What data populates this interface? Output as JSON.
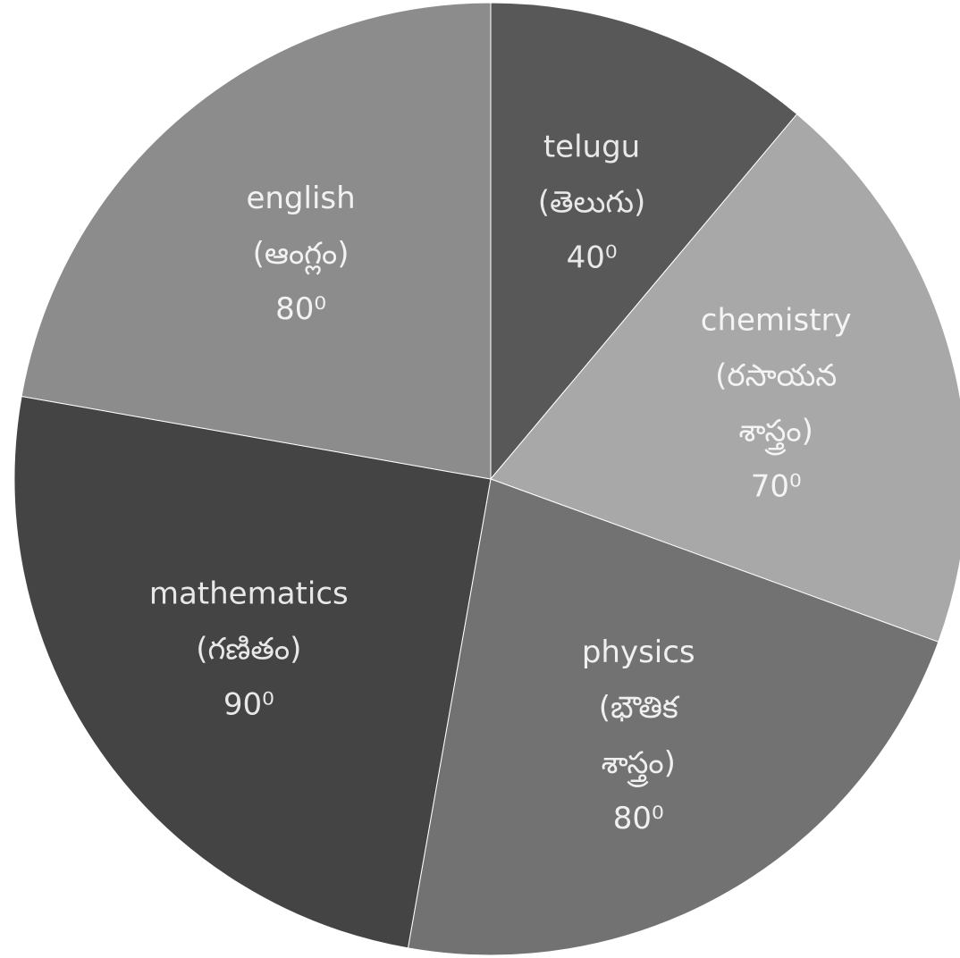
{
  "chart_data": {
    "type": "pie",
    "unit": "degrees",
    "slices": [
      {
        "label_lines": [
          "telugu",
          "(తెలుగు)"
        ],
        "value": 40,
        "value_text": "40⁰",
        "color": "#585858",
        "text_color": "#e8e8e8"
      },
      {
        "label_lines": [
          "chemistry",
          "(రసాయన",
          "శాస్త్రం)"
        ],
        "value": 70,
        "value_text": "70⁰",
        "color": "#a8a8a8",
        "text_color": "#f4f4f4"
      },
      {
        "label_lines": [
          "physics",
          "(భౌతిక",
          "శాస్త్రం)"
        ],
        "value": 80,
        "value_text": "80⁰",
        "color": "#727272",
        "text_color": "#f0f0f0"
      },
      {
        "label_lines": [
          "mathematics",
          "(గణితం)"
        ],
        "value": 90,
        "value_text": "90⁰",
        "color": "#444444",
        "text_color": "#e8e8e8"
      },
      {
        "label_lines": [
          "english",
          "(ఆంగ్లం)"
        ],
        "value": 80,
        "value_text": "80⁰",
        "color": "#8c8c8c",
        "text_color": "#f2f2f2"
      }
    ]
  }
}
